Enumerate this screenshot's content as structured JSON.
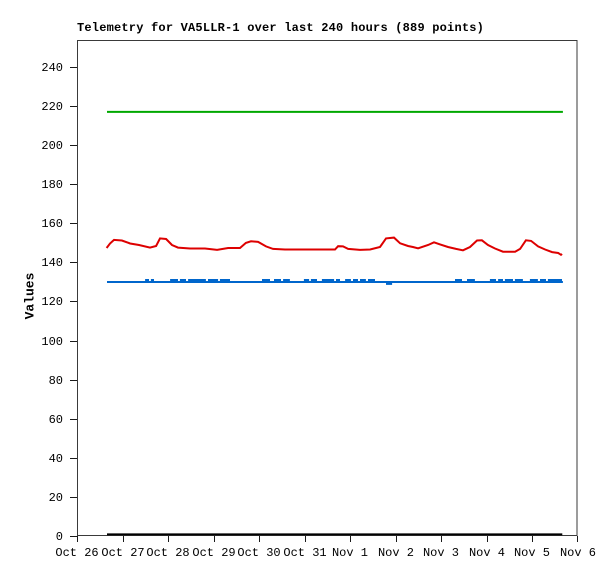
{
  "chart": {
    "background": "#ffffff",
    "border_color": "#3a3a3a",
    "tick_color": "#1a1a1a",
    "text_color": "#000000"
  },
  "chart_data": {
    "type": "line",
    "title": "Telemetry for VA5LLR-1 over last 240 hours (889 points)",
    "xlabel": "",
    "ylabel": "Values",
    "grid": false,
    "legend": "none",
    "ylim": [
      0,
      253
    ],
    "y_ticks": [
      0,
      20,
      40,
      60,
      80,
      100,
      120,
      140,
      160,
      180,
      200,
      220,
      240
    ],
    "x_range_hours": [
      0,
      264
    ],
    "x_ticks": [
      {
        "hour": 0,
        "label": "Oct 26"
      },
      {
        "hour": 24,
        "label": "Oct 27"
      },
      {
        "hour": 48,
        "label": "Oct 28"
      },
      {
        "hour": 72,
        "label": "Oct 29"
      },
      {
        "hour": 96,
        "label": "Oct 30"
      },
      {
        "hour": 120,
        "label": "Oct 31"
      },
      {
        "hour": 144,
        "label": "Nov 1"
      },
      {
        "hour": 168,
        "label": "Nov 2"
      },
      {
        "hour": 192,
        "label": "Nov 3"
      },
      {
        "hour": 216,
        "label": "Nov 4"
      },
      {
        "hour": 240,
        "label": "Nov 5"
      },
      {
        "hour": 264,
        "label": "Nov 6"
      }
    ],
    "series": [
      {
        "name": "green-constant-channel",
        "color": "#00a800",
        "width": 2,
        "points": [
          [
            15.8,
            217
          ],
          [
            256.3,
            217
          ]
        ]
      },
      {
        "name": "red-telemetry-channel",
        "color": "#dd0000",
        "width": 2,
        "points": [
          [
            15.6,
            147.4
          ],
          [
            17.4,
            149.7
          ],
          [
            19.5,
            151.5
          ],
          [
            23.7,
            151.2
          ],
          [
            28,
            149.7
          ],
          [
            32.7,
            148.9
          ],
          [
            38.5,
            147.6
          ],
          [
            41.7,
            148.4
          ],
          [
            43.8,
            152.3
          ],
          [
            47,
            152
          ],
          [
            50.1,
            148.9
          ],
          [
            53.3,
            147.6
          ],
          [
            59.6,
            147.1
          ],
          [
            67.5,
            147.1
          ],
          [
            73.9,
            146.4
          ],
          [
            79.7,
            147.4
          ],
          [
            86,
            147.4
          ],
          [
            89.1,
            150
          ],
          [
            91.8,
            150.8
          ],
          [
            95.5,
            150.5
          ],
          [
            99.7,
            148.2
          ],
          [
            103.4,
            146.9
          ],
          [
            109.7,
            146.6
          ],
          [
            117.6,
            146.6
          ],
          [
            128.2,
            146.6
          ],
          [
            136.1,
            146.6
          ],
          [
            137.7,
            148.3
          ],
          [
            140.3,
            148.2
          ],
          [
            143,
            146.9
          ],
          [
            149.3,
            146.4
          ],
          [
            154.6,
            146.6
          ],
          [
            159.8,
            147.9
          ],
          [
            163,
            152.3
          ],
          [
            167.2,
            152.7
          ],
          [
            170.4,
            149.8
          ],
          [
            174.6,
            148.4
          ],
          [
            177.2,
            147.9
          ],
          [
            179.9,
            147.2
          ],
          [
            185.2,
            148.9
          ],
          [
            188.3,
            150.3
          ],
          [
            191.5,
            149.2
          ],
          [
            195.7,
            147.9
          ],
          [
            199.9,
            146.9
          ],
          [
            203.6,
            146.2
          ],
          [
            207.3,
            147.9
          ],
          [
            211,
            151.2
          ],
          [
            213.6,
            151.3
          ],
          [
            216.8,
            148.9
          ],
          [
            220.5,
            147.1
          ],
          [
            224.7,
            145.5
          ],
          [
            231.1,
            145.5
          ],
          [
            233.7,
            146.9
          ],
          [
            236.8,
            151.3
          ],
          [
            239.5,
            151
          ],
          [
            243.2,
            148.2
          ],
          [
            246.9,
            146.6
          ],
          [
            250.6,
            145.3
          ],
          [
            253.8,
            144.8
          ],
          [
            255.3,
            143.9
          ],
          [
            255.9,
            144.3
          ]
        ]
      },
      {
        "name": "blue-base-channel",
        "color": "#0066cc",
        "width": 2,
        "points": [
          [
            15.8,
            130
          ],
          [
            256.3,
            130
          ]
        ]
      },
      {
        "name": "black-zero-channel",
        "color": "#000000",
        "width": 2,
        "points": [
          [
            15.8,
            0.8
          ],
          [
            256.0,
            0.8
          ]
        ]
      }
    ],
    "blue_dashes": {
      "color": "#0066cc",
      "width": 2,
      "high_value": 131,
      "high_segments_hours": [
        [
          35.9,
          38.0
        ],
        [
          39.0,
          40.6
        ],
        [
          49.1,
          53.3
        ],
        [
          54.3,
          57.5
        ],
        [
          58.6,
          68.0
        ],
        [
          69.1,
          74.4
        ],
        [
          75.4,
          80.7
        ],
        [
          97.6,
          101.8
        ],
        [
          103.9,
          107.6
        ],
        [
          108.7,
          112.3
        ],
        [
          119.7,
          122.4
        ],
        [
          123.4,
          126.6
        ],
        [
          129.2,
          135.6
        ],
        [
          136.6,
          138.7
        ],
        [
          141.4,
          144.5
        ],
        [
          145.6,
          148.2
        ],
        [
          149.3,
          152.4
        ],
        [
          153.5,
          157.2
        ],
        [
          199.4,
          203.1
        ],
        [
          205.7,
          209.9
        ],
        [
          217.8,
          221.0
        ],
        [
          222.1,
          224.7
        ],
        [
          225.7,
          230.0
        ],
        [
          231.0,
          235.2
        ],
        [
          238.9,
          243.1
        ],
        [
          244.2,
          247.4
        ],
        [
          248.4,
          255.8
        ]
      ],
      "low_value": 129,
      "low_segments_hours": [
        [
          163.0,
          166.2
        ]
      ]
    }
  }
}
